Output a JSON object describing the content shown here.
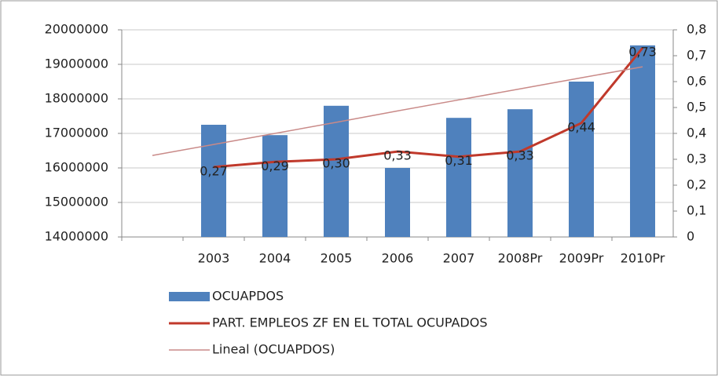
{
  "chart_data": {
    "type": "bar",
    "categories": [
      null,
      "2003",
      "2004",
      "2005",
      "2006",
      "2007",
      "2008Pr",
      "2009Pr",
      "2010Pr"
    ],
    "series": [
      {
        "name": "OCUAPDOS",
        "type": "bar",
        "color": "#4f81bd",
        "values": [
          null,
          17250000,
          16950000,
          17800000,
          16000000,
          17450000,
          17700000,
          18500000,
          19550000
        ]
      },
      {
        "name": "PART. EMPLEOS ZF EN EL TOTAL OCUPADOS",
        "type": "line",
        "axis": "y2",
        "color": "#c0392b",
        "values": [
          null,
          0.27,
          0.29,
          0.3,
          0.33,
          0.31,
          0.33,
          0.44,
          0.73
        ],
        "value_labels": [
          null,
          "0,27",
          "0,29",
          "0,30",
          "0,33",
          "0,31",
          "0,33",
          "0,44",
          "0,73"
        ]
      },
      {
        "name": "Lineal (OCUAPDOS)",
        "type": "trend",
        "color": "#c98a88",
        "values": [
          16360000,
          16680000,
          17000000,
          17320000,
          17650000,
          17970000,
          18290000,
          18610000,
          18930000
        ]
      }
    ],
    "ylim": [
      14000000,
      20000000
    ],
    "yticks": [
      14000000,
      15000000,
      16000000,
      17000000,
      18000000,
      19000000,
      20000000
    ],
    "y2lim": [
      0,
      0.8
    ],
    "y2ticks": [
      {
        "value": 0,
        "label": "0"
      },
      {
        "value": 0.1,
        "label": "0,1"
      },
      {
        "value": 0.2,
        "label": "0,2"
      },
      {
        "value": 0.3,
        "label": "0,3"
      },
      {
        "value": 0.4,
        "label": "0,4"
      },
      {
        "value": 0.5,
        "label": "0,5"
      },
      {
        "value": 0.6,
        "label": "0,6"
      },
      {
        "value": 0.7,
        "label": "0,7"
      },
      {
        "value": 0.8,
        "label": "0,8"
      }
    ],
    "grid": true
  }
}
